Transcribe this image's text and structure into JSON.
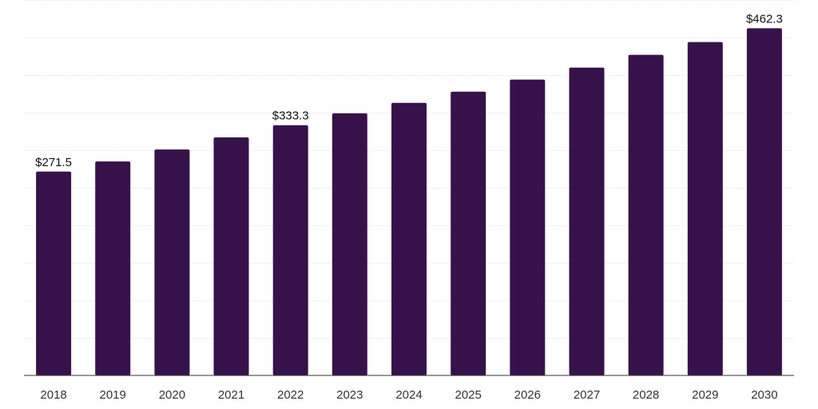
{
  "chart_data": {
    "type": "bar",
    "title": "",
    "xlabel": "",
    "ylabel": "",
    "categories": [
      "2018",
      "2019",
      "2020",
      "2021",
      "2022",
      "2023",
      "2024",
      "2025",
      "2026",
      "2027",
      "2028",
      "2029",
      "2030"
    ],
    "values": [
      271.5,
      285.0,
      301.0,
      317.0,
      333.3,
      349.0,
      363.0,
      378.0,
      394.0,
      410.0,
      427.0,
      444.0,
      462.3
    ],
    "data_labels": [
      "$271.5",
      "",
      "",
      "",
      "$333.3",
      "",
      "",
      "",
      "",
      "",
      "",
      "",
      "$462.3"
    ],
    "ylim": [
      0,
      500
    ],
    "y_gridlines": [
      50,
      100,
      150,
      200,
      250,
      300,
      350,
      400,
      450,
      500
    ],
    "grid": true,
    "y_tick_labels_shown": false,
    "legend": "none",
    "colors": {
      "bar": "#37124a",
      "grid": "#ececec",
      "axis": "#333333"
    }
  }
}
